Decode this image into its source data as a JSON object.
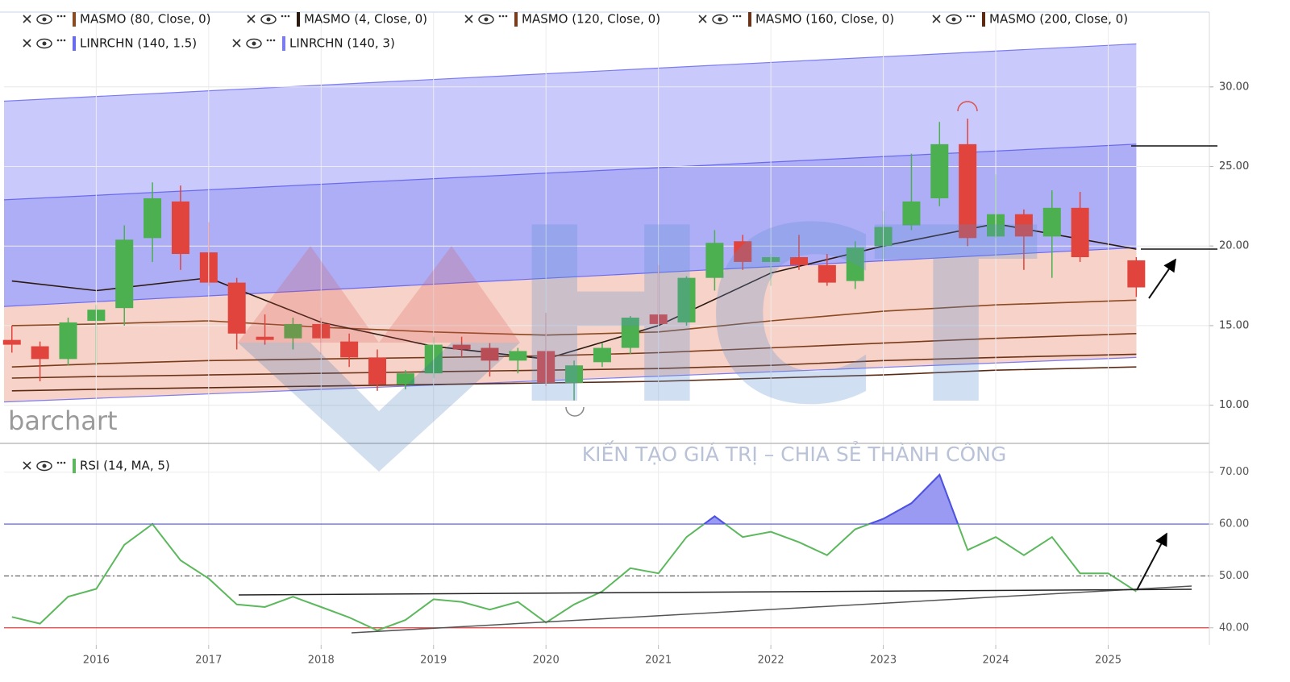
{
  "brand": "barchart",
  "watermark": {
    "logo": "HCT",
    "slogan": "KIẾN TẠO GIÁ TRỊ – CHIA SẺ THÀNH CÔNG"
  },
  "chart_data": [
    {
      "type": "candlestick",
      "x": [
        2015.25,
        2015.5,
        2015.75,
        2016,
        2016.25,
        2016.5,
        2016.75,
        2017,
        2017.25,
        2017.5,
        2017.75,
        2018,
        2018.25,
        2018.5,
        2018.75,
        2019,
        2019.25,
        2019.5,
        2019.75,
        2020,
        2020.25,
        2020.5,
        2020.75,
        2021,
        2021.25,
        2021.5,
        2021.75,
        2022,
        2022.25,
        2022.5,
        2022.75,
        2023,
        2023.25,
        2023.5,
        2023.75,
        2024,
        2024.25,
        2024.5,
        2024.75,
        2025.25
      ],
      "open": [
        14.1,
        13.7,
        12.9,
        15.3,
        16.1,
        20.5,
        22.8,
        19.6,
        17.7,
        14.3,
        14.2,
        15.1,
        14.0,
        13.0,
        11.3,
        12.0,
        13.8,
        13.6,
        12.8,
        13.4,
        11.4,
        12.7,
        13.6,
        15.7,
        15.2,
        18.0,
        20.3,
        19.0,
        19.3,
        18.8,
        17.8,
        20.0,
        21.3,
        23.0,
        26.4,
        20.6,
        22.0,
        20.6,
        22.4,
        19.1
      ],
      "high": [
        15,
        14,
        15.5,
        16.3,
        21.3,
        24,
        23.8,
        21.5,
        18,
        15.7,
        15.5,
        15.5,
        14.5,
        13.5,
        12.2,
        14.3,
        14.3,
        13.9,
        13.6,
        15.8,
        12.8,
        13.9,
        15.6,
        18.8,
        18.1,
        21,
        20.7,
        19.5,
        20.7,
        19.5,
        20.3,
        22.2,
        25.8,
        27.8,
        28,
        24.5,
        22.3,
        23.5,
        23.4,
        19.3
      ],
      "low": [
        13.3,
        11.5,
        12.5,
        12.5,
        15,
        19,
        18.5,
        17.5,
        13.5,
        13.8,
        13.5,
        13.2,
        12.4,
        10.9,
        11,
        11.7,
        13,
        11.8,
        12,
        11.2,
        10.3,
        12.4,
        13.2,
        15,
        15,
        17.2,
        18.5,
        17.5,
        18.5,
        17.5,
        17.3,
        19,
        21,
        22.5,
        20,
        20.5,
        18.5,
        18,
        19,
        16.8
      ],
      "close": [
        13.8,
        12.9,
        15.2,
        16.0,
        20.4,
        23.0,
        19.5,
        17.7,
        14.5,
        14.1,
        15.1,
        14.2,
        13.0,
        11.3,
        12.0,
        13.8,
        13.5,
        12.8,
        13.4,
        11.4,
        12.5,
        13.6,
        15.5,
        15.1,
        18.0,
        20.2,
        19.0,
        19.3,
        18.8,
        17.7,
        19.9,
        21.2,
        22.8,
        26.4,
        20.5,
        22.0,
        20.6,
        22.4,
        19.3,
        17.4
      ],
      "up_color": "#4caf50",
      "down_color": "#e0443c",
      "series": [
        {
          "name": "MASMO (80, Close, 0)",
          "type": "line",
          "color": "#8a4a22",
          "x": [
            2015.25,
            2016,
            2017,
            2018,
            2019,
            2020,
            2021,
            2022,
            2023,
            2024,
            2025.25
          ],
          "values": [
            15.0,
            15.1,
            15.3,
            14.9,
            14.6,
            14.4,
            14.6,
            15.3,
            15.9,
            16.3,
            16.6
          ]
        },
        {
          "name": "MASMO (4, Close, 0)",
          "type": "line",
          "color": "#2b1a10",
          "x": [
            2015.25,
            2016,
            2017,
            2018,
            2019,
            2020,
            2021,
            2022,
            2023,
            2024,
            2025.25
          ],
          "values": [
            17.8,
            17.2,
            18.0,
            15.2,
            13.7,
            12.9,
            15.0,
            18.3,
            20.0,
            21.4,
            19.8
          ]
        },
        {
          "name": "MASMO (120, Close, 0)",
          "type": "line",
          "color": "#7a3b1a",
          "x": [
            2015.25,
            2016,
            2017,
            2018,
            2019,
            2020,
            2021,
            2022,
            2023,
            2024,
            2025.25
          ],
          "values": [
            12.4,
            12.6,
            12.8,
            12.9,
            13.0,
            13.1,
            13.3,
            13.6,
            13.9,
            14.2,
            14.5
          ]
        },
        {
          "name": "MASMO (160, Close, 0)",
          "type": "line",
          "color": "#6b3317",
          "x": [
            2015.25,
            2016,
            2017,
            2018,
            2019,
            2020,
            2021,
            2022,
            2023,
            2024,
            2025.25
          ],
          "values": [
            11.7,
            11.8,
            11.9,
            12.0,
            12.1,
            12.2,
            12.3,
            12.5,
            12.8,
            13.0,
            13.2
          ]
        },
        {
          "name": "MASMO (200, Close, 0)",
          "type": "line",
          "color": "#5c2a12",
          "x": [
            2015.25,
            2016,
            2017,
            2018,
            2019,
            2020,
            2021,
            2022,
            2023,
            2024,
            2025.25
          ],
          "values": [
            10.9,
            11.0,
            11.1,
            11.2,
            11.3,
            11.4,
            11.5,
            11.7,
            11.9,
            12.2,
            12.4
          ]
        },
        {
          "name": "LINRCHN (140, 1.5)",
          "type": "channel",
          "color": "#6a6af0",
          "fill": "#a9a9f6",
          "x": [
            2015.18,
            2025.25
          ],
          "upper": [
            22.9,
            26.4
          ],
          "lower": [
            16.2,
            19.9
          ]
        },
        {
          "name": "LINRCHN (140, 3)",
          "type": "channel",
          "color": "#7c7cf2",
          "fill": "#c9c9fb",
          "lower_fill": "#f7d2c8",
          "x": [
            2015.18,
            2025.25
          ],
          "upper": [
            29.1,
            32.7
          ],
          "lower": [
            10.2,
            13.0
          ]
        }
      ],
      "xlim": [
        2015.18,
        2025.9
      ],
      "ylim": [
        7.7,
        34.7
      ],
      "yticks": [
        {
          "value": 10,
          "label": "10.00"
        },
        {
          "value": 15,
          "label": "15.00"
        },
        {
          "value": 20,
          "label": "20.00"
        },
        {
          "value": 25,
          "label": "25.00"
        },
        {
          "value": 30,
          "label": "30.00"
        }
      ],
      "grid": true
    },
    {
      "type": "line",
      "series": [
        {
          "name": "RSI (14, MA, 5)",
          "color": "#5cb85c",
          "x": [
            2015.25,
            2015.5,
            2015.75,
            2016,
            2016.25,
            2016.5,
            2016.75,
            2017,
            2017.25,
            2017.5,
            2017.75,
            2018,
            2018.25,
            2018.5,
            2018.75,
            2019,
            2019.25,
            2019.5,
            2019.75,
            2020,
            2020.25,
            2020.5,
            2020.75,
            2021,
            2021.25,
            2021.5,
            2021.75,
            2022,
            2022.25,
            2022.5,
            2022.75,
            2023,
            2023.25,
            2023.5,
            2023.75,
            2024,
            2024.25,
            2024.5,
            2024.75,
            2025,
            2025.25
          ],
          "values": [
            42.1,
            40.8,
            46.0,
            47.5,
            56.0,
            60.0,
            53.0,
            49.5,
            44.5,
            44.0,
            46.0,
            44.0,
            42.0,
            39.5,
            41.5,
            45.5,
            45.0,
            43.5,
            45.0,
            41.0,
            44.5,
            47.0,
            51.5,
            50.5,
            57.5,
            61.5,
            57.5,
            58.5,
            56.5,
            54.0,
            59.0,
            61.0,
            64.0,
            69.5,
            55.0,
            57.5,
            54.0,
            57.5,
            50.5,
            50.5,
            47.0
          ]
        }
      ],
      "levels": [
        {
          "value": 60,
          "color": "#5050e8",
          "fill": "#9a9af2"
        },
        {
          "value": 50,
          "color": "#555555",
          "dash": true
        },
        {
          "value": 40,
          "color": "#e04040"
        }
      ],
      "xlim": [
        2015.18,
        2025.9
      ],
      "xticks": [
        2016,
        2017,
        2018,
        2019,
        2020,
        2021,
        2022,
        2023,
        2024,
        2025
      ],
      "ylim": [
        36.7,
        74.0
      ],
      "yticks": [
        {
          "value": 40,
          "label": "40.00"
        },
        {
          "value": 50,
          "label": "50.00"
        },
        {
          "value": 60,
          "label": "60.00"
        },
        {
          "value": 70,
          "label": "70.00"
        }
      ],
      "grid": true
    }
  ]
}
